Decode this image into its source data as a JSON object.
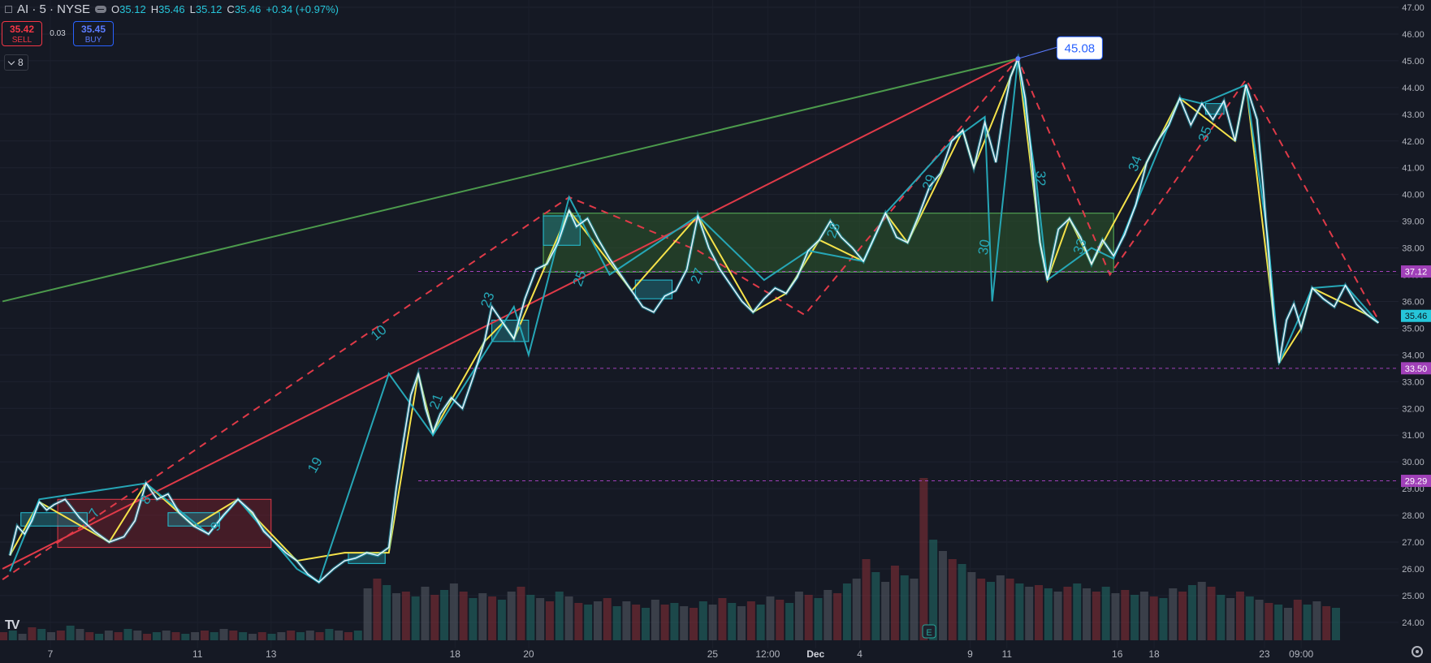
{
  "header": {
    "symbol": "AI · 5 · NYSE",
    "open_label": "O",
    "open": "35.12",
    "high_label": "H",
    "high": "35.46",
    "low_label": "L",
    "low": "35.12",
    "close_label": "C",
    "close": "35.46",
    "change": "+0.34 (+0.97%)"
  },
  "trade": {
    "sell_price": "35.42",
    "sell_label": "SELL",
    "spread": "0.03",
    "buy_price": "35.45",
    "buy_label": "BUY"
  },
  "indicator": {
    "count": "8"
  },
  "colors": {
    "background": "#151924",
    "price": "#e6f4ff",
    "price_glow": "#26c6da",
    "zigzag_yellow": "#f5e24a",
    "zigzag_teal": "#26a6b6",
    "red_line": "#e03a48",
    "green_line": "#4c9a4c",
    "level_purple": "#a040b8",
    "last_price": "#26c6da"
  },
  "chart_data": {
    "type": "line",
    "title": "",
    "xlabel": "",
    "ylabel": "",
    "ylim": [
      23.5,
      47.2
    ],
    "y_ticks": [
      "47.00",
      "46.00",
      "45.00",
      "44.00",
      "43.00",
      "42.00",
      "41.00",
      "40.00",
      "39.00",
      "38.00",
      "37.00",
      "36.00",
      "35.00",
      "34.00",
      "33.00",
      "32.00",
      "31.00",
      "30.00",
      "29.00",
      "28.00",
      "27.00",
      "26.00",
      "25.00",
      "24.00"
    ],
    "x_ticks": [
      {
        "label": "7",
        "t": 7
      },
      {
        "label": "11",
        "t": 11
      },
      {
        "label": "13",
        "t": 13
      },
      {
        "label": "18",
        "t": 18
      },
      {
        "label": "20",
        "t": 20
      },
      {
        "label": "25",
        "t": 25
      },
      {
        "label": "12:00",
        "t": 26.5
      },
      {
        "label": "Dec",
        "t": 27.8
      },
      {
        "label": "4",
        "t": 29
      },
      {
        "label": "9",
        "t": 32
      },
      {
        "label": "11",
        "t": 33
      },
      {
        "label": "16",
        "t": 36
      },
      {
        "label": "18",
        "t": 37
      },
      {
        "label": "23",
        "t": 40
      },
      {
        "label": "09:00",
        "t": 41
      }
    ],
    "price_path": [
      [
        5.9,
        26.5
      ],
      [
        6.1,
        27.6
      ],
      [
        6.3,
        27.3
      ],
      [
        6.5,
        27.8
      ],
      [
        6.7,
        28.5
      ],
      [
        6.9,
        28.2
      ],
      [
        7.1,
        28.4
      ],
      [
        7.4,
        28.6
      ],
      [
        7.8,
        27.9
      ],
      [
        8.2,
        27.4
      ],
      [
        8.6,
        27.0
      ],
      [
        9.0,
        27.2
      ],
      [
        9.3,
        27.8
      ],
      [
        9.6,
        29.2
      ],
      [
        9.9,
        28.6
      ],
      [
        10.2,
        28.8
      ],
      [
        10.5,
        28.1
      ],
      [
        10.9,
        27.6
      ],
      [
        11.3,
        27.3
      ],
      [
        11.7,
        28.0
      ],
      [
        12.1,
        28.6
      ],
      [
        12.5,
        28.1
      ],
      [
        12.8,
        27.4
      ],
      [
        13.1,
        27.0
      ],
      [
        13.4,
        26.6
      ],
      [
        13.7,
        26.3
      ],
      [
        14.0,
        25.8
      ],
      [
        14.3,
        25.5
      ],
      [
        14.7,
        26.0
      ],
      [
        15.0,
        26.3
      ],
      [
        15.3,
        26.4
      ],
      [
        15.6,
        26.6
      ],
      [
        15.9,
        26.5
      ],
      [
        16.2,
        26.8
      ],
      [
        16.4,
        29.0
      ],
      [
        16.6,
        30.8
      ],
      [
        16.8,
        32.5
      ],
      [
        17.0,
        33.3
      ],
      [
        17.2,
        32.0
      ],
      [
        17.4,
        31.1
      ],
      [
        17.6,
        31.8
      ],
      [
        17.9,
        32.4
      ],
      [
        18.2,
        32.0
      ],
      [
        18.5,
        33.2
      ],
      [
        18.8,
        34.5
      ],
      [
        19.0,
        35.8
      ],
      [
        19.3,
        35.2
      ],
      [
        19.6,
        34.6
      ],
      [
        19.9,
        36.1
      ],
      [
        20.2,
        37.2
      ],
      [
        20.5,
        37.4
      ],
      [
        20.8,
        38.2
      ],
      [
        21.1,
        39.4
      ],
      [
        21.3,
        38.8
      ],
      [
        21.6,
        39.1
      ],
      [
        21.9,
        38.3
      ],
      [
        22.2,
        37.6
      ],
      [
        22.5,
        37.0
      ],
      [
        22.8,
        36.4
      ],
      [
        23.1,
        35.8
      ],
      [
        23.4,
        35.6
      ],
      [
        23.7,
        36.2
      ],
      [
        24.0,
        36.4
      ],
      [
        24.3,
        37.2
      ],
      [
        24.6,
        39.2
      ],
      [
        24.9,
        38.0
      ],
      [
        25.2,
        37.2
      ],
      [
        25.5,
        36.6
      ],
      [
        25.8,
        36.0
      ],
      [
        26.1,
        35.6
      ],
      [
        26.4,
        36.1
      ],
      [
        26.7,
        36.5
      ],
      [
        27.0,
        36.3
      ],
      [
        27.3,
        36.9
      ],
      [
        27.6,
        37.9
      ],
      [
        27.9,
        38.3
      ],
      [
        28.2,
        39.0
      ],
      [
        28.5,
        38.4
      ],
      [
        28.8,
        38.0
      ],
      [
        29.1,
        37.5
      ],
      [
        29.4,
        38.4
      ],
      [
        29.7,
        39.3
      ],
      [
        30.0,
        38.4
      ],
      [
        30.3,
        38.2
      ],
      [
        30.6,
        39.2
      ],
      [
        30.9,
        40.3
      ],
      [
        31.2,
        40.8
      ],
      [
        31.5,
        42.0
      ],
      [
        31.8,
        42.4
      ],
      [
        32.1,
        41.0
      ],
      [
        32.4,
        42.7
      ],
      [
        32.7,
        41.2
      ],
      [
        32.9,
        43.0
      ],
      [
        33.1,
        44.4
      ],
      [
        33.3,
        45.08
      ],
      [
        33.5,
        43.6
      ],
      [
        33.7,
        41.0
      ],
      [
        33.9,
        38.2
      ],
      [
        34.1,
        36.8
      ],
      [
        34.4,
        38.7
      ],
      [
        34.7,
        39.1
      ],
      [
        35.0,
        38.4
      ],
      [
        35.3,
        37.4
      ],
      [
        35.6,
        38.3
      ],
      [
        35.9,
        37.7
      ],
      [
        36.2,
        38.5
      ],
      [
        36.5,
        39.6
      ],
      [
        36.8,
        41.2
      ],
      [
        37.1,
        42.0
      ],
      [
        37.4,
        42.6
      ],
      [
        37.7,
        43.6
      ],
      [
        38.0,
        42.6
      ],
      [
        38.3,
        43.4
      ],
      [
        38.6,
        42.8
      ],
      [
        38.9,
        43.5
      ],
      [
        39.2,
        42.0
      ],
      [
        39.5,
        44.1
      ],
      [
        39.8,
        42.8
      ],
      [
        39.95,
        40.5
      ],
      [
        40.1,
        38.0
      ],
      [
        40.25,
        35.5
      ],
      [
        40.4,
        33.7
      ],
      [
        40.6,
        35.3
      ],
      [
        40.8,
        35.9
      ],
      [
        41.0,
        35.0
      ],
      [
        41.3,
        36.5
      ],
      [
        41.6,
        36.1
      ],
      [
        41.9,
        35.8
      ],
      [
        42.2,
        36.6
      ],
      [
        42.5,
        35.9
      ],
      [
        42.8,
        35.5
      ],
      [
        43.1,
        35.2
      ]
    ],
    "price_labels": [
      {
        "name": "high",
        "value": "45.08"
      }
    ],
    "levels": [
      {
        "value": 37.12,
        "label": "37.12"
      },
      {
        "value": 33.5,
        "label": "33.50"
      },
      {
        "value": 29.29,
        "label": "29.29"
      }
    ],
    "last_price": {
      "value": 35.46,
      "label": "35.46"
    },
    "wave_labels": [
      "7",
      "8",
      "9",
      "10",
      "19",
      "21",
      "23",
      "25",
      "27",
      "28",
      "29",
      "30",
      "32",
      "33",
      "34",
      "35"
    ],
    "volume": [
      0.05,
      0.06,
      0.04,
      0.08,
      0.07,
      0.05,
      0.06,
      0.09,
      0.07,
      0.05,
      0.04,
      0.06,
      0.05,
      0.07,
      0.06,
      0.04,
      0.05,
      0.06,
      0.05,
      0.04,
      0.05,
      0.06,
      0.05,
      0.07,
      0.06,
      0.05,
      0.04,
      0.05,
      0.04,
      0.05,
      0.06,
      0.05,
      0.06,
      0.05,
      0.07,
      0.06,
      0.05,
      0.06,
      0.32,
      0.38,
      0.34,
      0.29,
      0.3,
      0.27,
      0.33,
      0.28,
      0.31,
      0.35,
      0.3,
      0.26,
      0.29,
      0.27,
      0.25,
      0.3,
      0.33,
      0.28,
      0.26,
      0.24,
      0.3,
      0.27,
      0.23,
      0.22,
      0.24,
      0.26,
      0.21,
      0.24,
      0.22,
      0.2,
      0.25,
      0.22,
      0.23,
      0.21,
      0.2,
      0.24,
      0.22,
      0.26,
      0.23,
      0.21,
      0.24,
      0.22,
      0.27,
      0.25,
      0.23,
      0.3,
      0.28,
      0.26,
      0.31,
      0.29,
      0.35,
      0.38,
      0.5,
      0.42,
      0.36,
      0.46,
      0.4,
      0.38,
      1.0,
      0.62,
      0.55,
      0.5,
      0.47,
      0.42,
      0.38,
      0.36,
      0.4,
      0.38,
      0.35,
      0.33,
      0.34,
      0.32,
      0.3,
      0.33,
      0.35,
      0.32,
      0.3,
      0.33,
      0.29,
      0.31,
      0.28,
      0.3,
      0.27,
      0.26,
      0.32,
      0.3,
      0.34,
      0.36,
      0.33,
      0.28,
      0.26,
      0.3,
      0.27,
      0.25,
      0.23,
      0.22,
      0.2,
      0.25,
      0.22,
      0.24,
      0.21,
      0.2
    ]
  }
}
